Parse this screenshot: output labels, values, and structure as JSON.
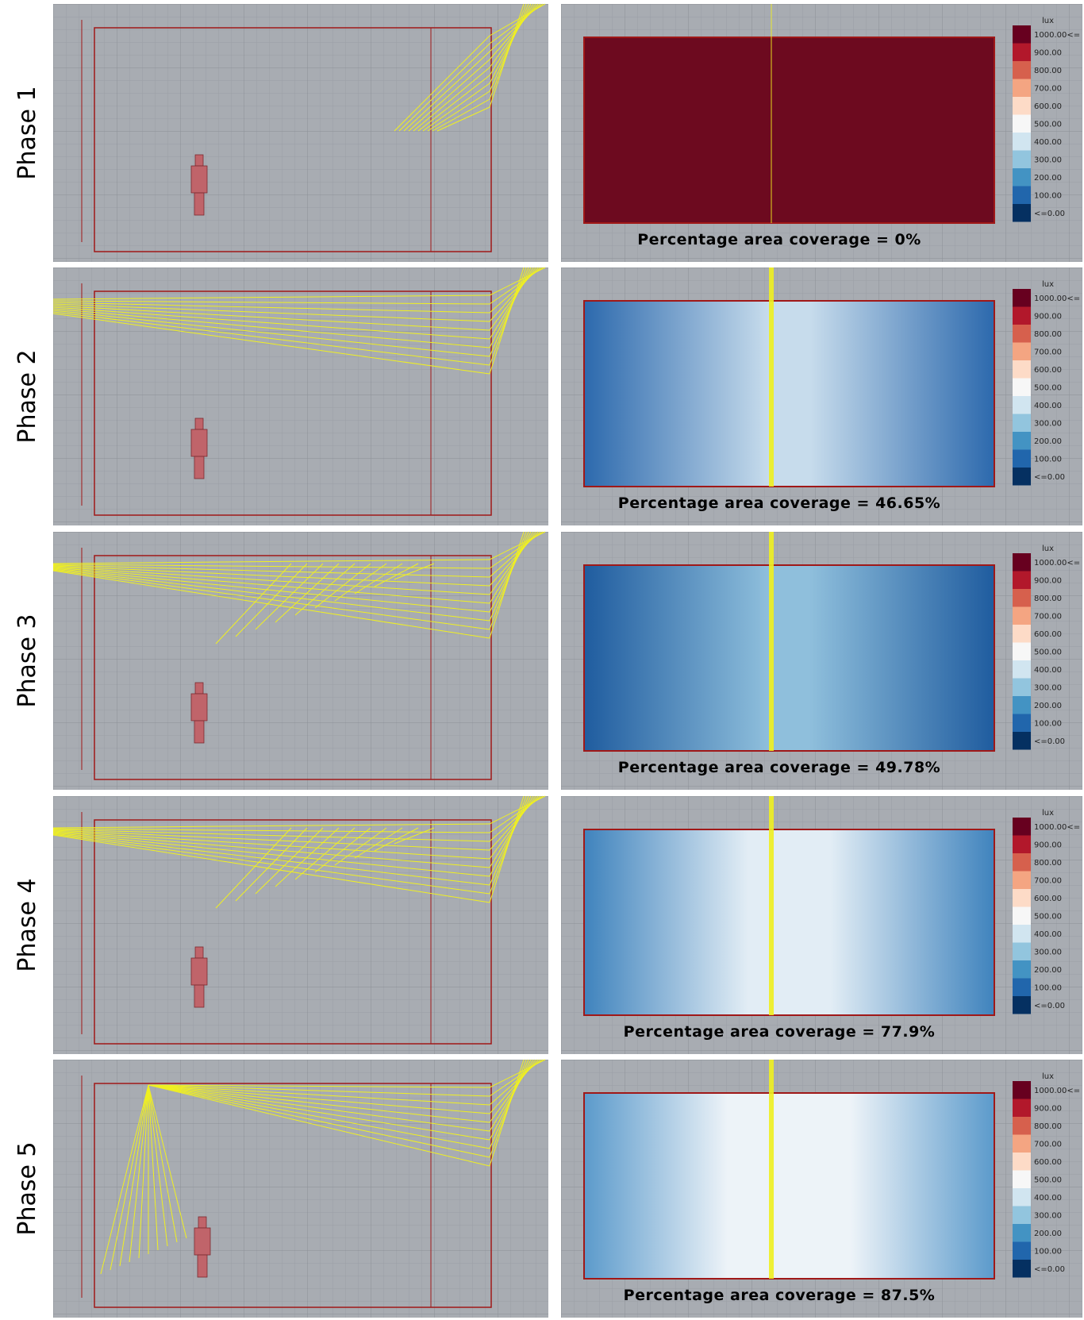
{
  "phases": [
    {
      "label": "Phase 1",
      "coverage": "Percentage area coverage = 0%"
    },
    {
      "label": "Phase 2",
      "coverage": "Percentage area coverage = 46.65%"
    },
    {
      "label": "Phase 3",
      "coverage": "Percentage area coverage = 49.78%"
    },
    {
      "label": "Phase 4",
      "coverage": "Percentage area coverage = 77.9%"
    },
    {
      "label": "Phase 5",
      "coverage": "Percentage area coverage = 87.5%"
    }
  ],
  "legend": {
    "unit": "lux",
    "labels": [
      "1000.00<=",
      "900.00",
      "800.00",
      "700.00",
      "600.00",
      "500.00",
      "400.00",
      "300.00",
      "200.00",
      "100.00",
      "<=0.00"
    ]
  }
}
